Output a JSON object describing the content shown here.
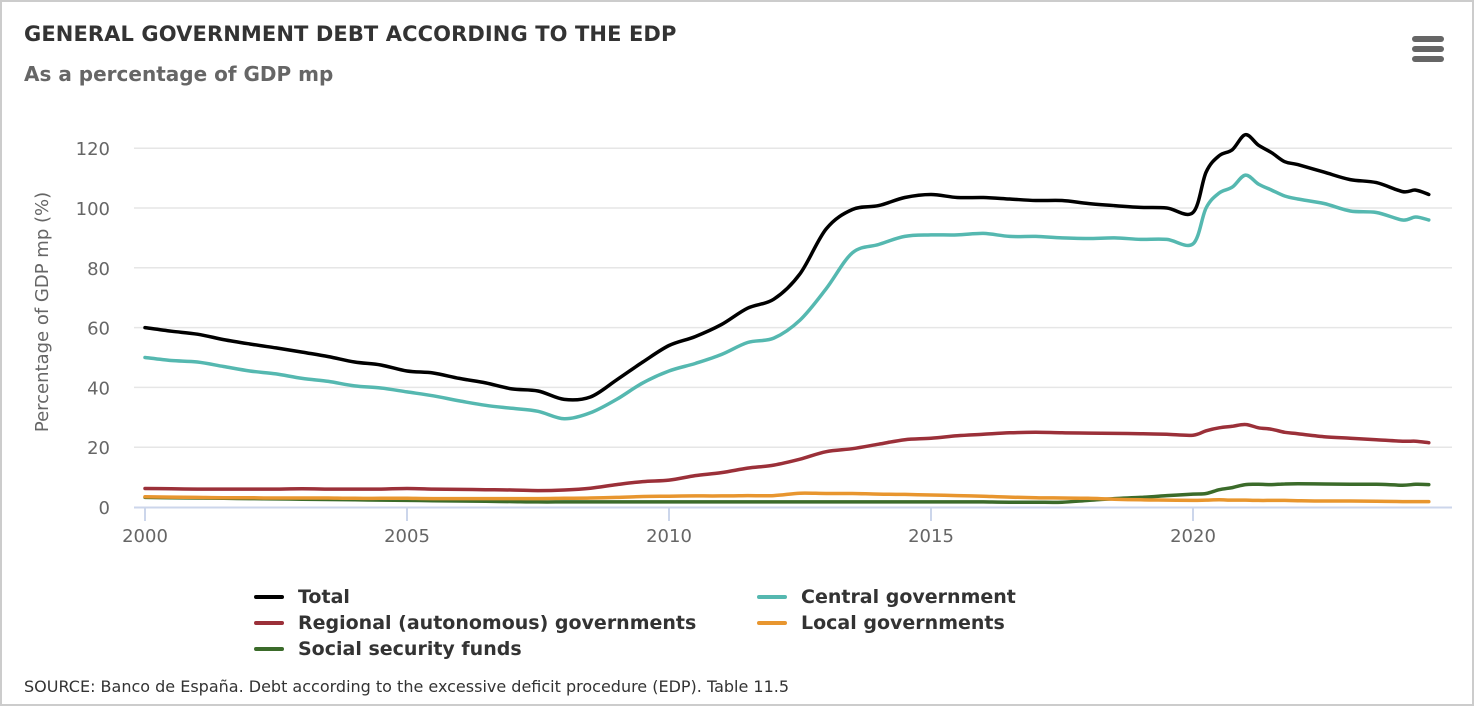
{
  "header": {
    "title": "GENERAL GOVERNMENT DEBT ACCORDING TO THE EDP",
    "subtitle": "As a percentage of GDP mp",
    "menu_icon": "hamburger-menu-icon"
  },
  "footer": {
    "source": "SOURCE: Banco de España. Debt according to the excessive deficit procedure (EDP). Table 11.5"
  },
  "chart_data": {
    "type": "line",
    "title": "GENERAL GOVERNMENT DEBT ACCORDING TO THE EDP",
    "subtitle": "As a percentage of GDP mp",
    "xlabel": "",
    "ylabel": "Percentage of GDP mp (%)",
    "xlim": [
      2000,
      2024.75
    ],
    "ylim": [
      0,
      125
    ],
    "x_ticks": [
      2000,
      2005,
      2010,
      2015,
      2020
    ],
    "y_ticks": [
      0,
      20,
      40,
      60,
      80,
      100,
      120
    ],
    "grid": "horizontal",
    "legend_position": "bottom",
    "x": [
      2000.0,
      2000.5,
      2001.0,
      2001.5,
      2002.0,
      2002.5,
      2003.0,
      2003.5,
      2004.0,
      2004.5,
      2005.0,
      2005.5,
      2006.0,
      2006.5,
      2007.0,
      2007.5,
      2008.0,
      2008.5,
      2009.0,
      2009.5,
      2010.0,
      2010.5,
      2011.0,
      2011.5,
      2012.0,
      2012.5,
      2013.0,
      2013.5,
      2014.0,
      2014.5,
      2015.0,
      2015.5,
      2016.0,
      2016.5,
      2017.0,
      2017.5,
      2018.0,
      2018.5,
      2019.0,
      2019.5,
      2020.0,
      2020.25,
      2020.5,
      2020.75,
      2021.0,
      2021.25,
      2021.5,
      2021.75,
      2022.0,
      2022.5,
      2023.0,
      2023.5,
      2024.0,
      2024.25,
      2024.5
    ],
    "series": [
      {
        "name": "Total",
        "color": "#000000",
        "values": [
          60.0,
          58.8,
          57.8,
          56.0,
          54.5,
          53.2,
          51.8,
          50.3,
          48.5,
          47.5,
          45.5,
          44.8,
          43.0,
          41.5,
          39.5,
          38.8,
          36.0,
          36.8,
          42.5,
          48.5,
          54.0,
          57.0,
          61.0,
          66.5,
          69.5,
          78.0,
          93.0,
          99.5,
          100.8,
          103.5,
          104.5,
          103.5,
          103.5,
          103.0,
          102.5,
          102.5,
          101.5,
          100.8,
          100.2,
          100.0,
          98.5,
          112.0,
          117.5,
          119.5,
          124.5,
          121.0,
          118.5,
          115.5,
          114.5,
          112.0,
          109.5,
          108.5,
          105.5,
          106.0,
          104.5
        ]
      },
      {
        "name": "Central government",
        "color": "#55b8b0",
        "values": [
          50.0,
          49.0,
          48.5,
          47.0,
          45.5,
          44.5,
          43.0,
          42.0,
          40.5,
          39.8,
          38.5,
          37.2,
          35.5,
          34.0,
          33.0,
          32.0,
          29.5,
          31.5,
          36.0,
          41.5,
          45.5,
          48.0,
          51.0,
          55.0,
          56.5,
          62.5,
          73.0,
          85.0,
          87.8,
          90.5,
          91.0,
          91.0,
          91.5,
          90.5,
          90.5,
          90.0,
          89.8,
          90.0,
          89.5,
          89.5,
          88.0,
          100.0,
          105.0,
          107.0,
          111.0,
          108.0,
          106.0,
          104.0,
          103.0,
          101.5,
          99.0,
          98.5,
          96.0,
          97.0,
          96.0
        ]
      },
      {
        "name": "Regional (autonomous) governments",
        "color": "#9b3039",
        "values": [
          6.2,
          6.1,
          6.0,
          6.0,
          6.0,
          6.0,
          6.1,
          6.0,
          6.0,
          6.0,
          6.2,
          6.0,
          5.9,
          5.8,
          5.7,
          5.5,
          5.7,
          6.3,
          7.5,
          8.5,
          9.0,
          10.5,
          11.5,
          13.0,
          14.0,
          16.0,
          18.5,
          19.5,
          21.0,
          22.5,
          23.0,
          23.8,
          24.3,
          24.8,
          25.0,
          24.8,
          24.7,
          24.6,
          24.5,
          24.3,
          24.0,
          25.5,
          26.5,
          27.0,
          27.6,
          26.5,
          26.0,
          25.0,
          24.5,
          23.5,
          23.0,
          22.5,
          22.0,
          22.0,
          21.5
        ]
      },
      {
        "name": "Local governments",
        "color": "#e8962f",
        "values": [
          3.4,
          3.3,
          3.2,
          3.1,
          3.1,
          3.0,
          3.0,
          3.0,
          2.9,
          2.9,
          2.9,
          2.8,
          2.8,
          2.8,
          2.8,
          2.8,
          2.9,
          3.0,
          3.2,
          3.5,
          3.6,
          3.7,
          3.7,
          3.8,
          3.8,
          4.6,
          4.5,
          4.5,
          4.3,
          4.2,
          4.0,
          3.8,
          3.6,
          3.3,
          3.1,
          3.0,
          2.9,
          2.6,
          2.4,
          2.3,
          2.2,
          2.3,
          2.4,
          2.3,
          2.3,
          2.2,
          2.2,
          2.2,
          2.1,
          2.0,
          2.0,
          1.9,
          1.8,
          1.8,
          1.8
        ]
      },
      {
        "name": "Social security funds",
        "color": "#3b6b2a",
        "values": [
          3.2,
          3.1,
          3.0,
          2.9,
          2.8,
          2.7,
          2.6,
          2.5,
          2.4,
          2.3,
          2.2,
          2.1,
          2.0,
          1.9,
          1.8,
          1.7,
          1.7,
          1.7,
          1.7,
          1.7,
          1.7,
          1.7,
          1.7,
          1.7,
          1.7,
          1.7,
          1.7,
          1.7,
          1.7,
          1.7,
          1.7,
          1.7,
          1.7,
          1.6,
          1.6,
          1.6,
          2.2,
          2.8,
          3.2,
          3.8,
          4.3,
          4.5,
          5.8,
          6.5,
          7.5,
          7.6,
          7.5,
          7.7,
          7.8,
          7.7,
          7.6,
          7.6,
          7.3,
          7.6,
          7.5
        ]
      }
    ]
  }
}
